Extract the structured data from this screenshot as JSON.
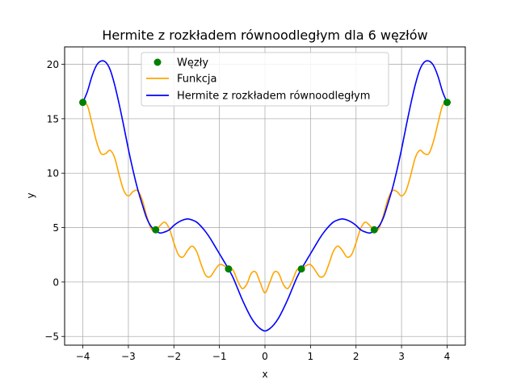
{
  "chart_data": {
    "type": "line",
    "title": "Hermite z rozkładem równoodległym dla 6 węzłów",
    "xlabel": "x",
    "ylabel": "y",
    "xlim": [
      -4.4,
      4.4
    ],
    "ylim": [
      -5.8,
      21.6
    ],
    "xticks": [
      -4,
      -3,
      -2,
      -1,
      0,
      1,
      2,
      3,
      4
    ],
    "yticks": [
      -5,
      0,
      5,
      10,
      15,
      20
    ],
    "grid": true,
    "legend_position": "top-center",
    "colors": {
      "nodes": "#008000",
      "function": "#ffa500",
      "hermite": "#0000ff"
    },
    "series": [
      {
        "name": "Węzły",
        "kind": "scatter",
        "x": [
          -4.0,
          -2.4,
          -0.8,
          0.8,
          2.4,
          4.0
        ],
        "y": [
          16.5,
          4.8,
          1.2,
          1.2,
          4.8,
          16.5
        ]
      },
      {
        "name": "Funkcja",
        "kind": "line",
        "x": [
          -4.0,
          -3.9,
          -3.8,
          -3.7,
          -3.6,
          -3.5,
          -3.4,
          -3.3,
          -3.2,
          -3.1,
          -3.0,
          -2.9,
          -2.8,
          -2.7,
          -2.6,
          -2.5,
          -2.4,
          -2.3,
          -2.2,
          -2.1,
          -2.0,
          -1.9,
          -1.8,
          -1.7,
          -1.6,
          -1.5,
          -1.4,
          -1.3,
          -1.2,
          -1.1,
          -1.0,
          -0.9,
          -0.8,
          -0.7,
          -0.6,
          -0.5,
          -0.4,
          -0.3,
          -0.2,
          -0.1,
          0.0,
          0.1,
          0.2,
          0.3,
          0.4,
          0.5,
          0.6,
          0.7,
          0.8,
          0.9,
          1.0,
          1.1,
          1.2,
          1.3,
          1.4,
          1.5,
          1.6,
          1.7,
          1.8,
          1.9,
          2.0,
          2.1,
          2.2,
          2.3,
          2.4,
          2.5,
          2.6,
          2.7,
          2.8,
          2.9,
          3.0,
          3.1,
          3.2,
          3.3,
          3.4,
          3.5,
          3.6,
          3.7,
          3.8,
          3.9,
          4.0
        ],
        "y": [
          16.5,
          16.2,
          14.6,
          12.9,
          11.8,
          11.8,
          12.1,
          11.4,
          9.8,
          8.4,
          7.9,
          8.3,
          8.4,
          7.6,
          6.1,
          4.9,
          4.8,
          5.2,
          5.5,
          4.9,
          3.6,
          2.5,
          2.3,
          2.9,
          3.3,
          2.8,
          1.6,
          0.6,
          0.5,
          1.1,
          1.6,
          1.5,
          1.2,
          1.1,
          0.1,
          -0.6,
          -0.2,
          0.8,
          0.9,
          -0.1,
          -1.0,
          -0.1,
          0.9,
          0.8,
          -0.2,
          -0.6,
          0.1,
          1.1,
          1.2,
          1.5,
          1.6,
          1.1,
          0.5,
          0.6,
          1.6,
          2.8,
          3.3,
          2.9,
          2.3,
          2.5,
          3.6,
          4.9,
          5.5,
          5.2,
          4.8,
          4.9,
          6.1,
          7.6,
          8.4,
          8.3,
          7.9,
          8.4,
          9.8,
          11.4,
          12.1,
          11.8,
          11.8,
          12.9,
          14.6,
          16.2,
          16.5
        ]
      },
      {
        "name": "Hermite z rozkładem równoodległym",
        "kind": "line",
        "x": [
          -4.0,
          -3.9,
          -3.8,
          -3.7,
          -3.6,
          -3.5,
          -3.4,
          -3.3,
          -3.2,
          -3.1,
          -3.0,
          -2.9,
          -2.8,
          -2.7,
          -2.6,
          -2.5,
          -2.4,
          -2.3,
          -2.2,
          -2.1,
          -2.0,
          -1.9,
          -1.8,
          -1.7,
          -1.6,
          -1.5,
          -1.4,
          -1.3,
          -1.2,
          -1.1,
          -1.0,
          -0.9,
          -0.8,
          -0.7,
          -0.6,
          -0.5,
          -0.4,
          -0.3,
          -0.2,
          -0.1,
          0.0,
          0.1,
          0.2,
          0.3,
          0.4,
          0.5,
          0.6,
          0.7,
          0.8,
          0.9,
          1.0,
          1.1,
          1.2,
          1.3,
          1.4,
          1.5,
          1.6,
          1.7,
          1.8,
          1.9,
          2.0,
          2.1,
          2.2,
          2.3,
          2.4,
          2.5,
          2.6,
          2.7,
          2.8,
          2.9,
          3.0,
          3.1,
          3.2,
          3.3,
          3.4,
          3.5,
          3.6,
          3.7,
          3.8,
          3.9,
          4.0
        ],
        "y": [
          16.5,
          17.5,
          18.9,
          19.9,
          20.3,
          20.2,
          19.5,
          18.1,
          16.3,
          14.3,
          12.2,
          10.3,
          8.6,
          7.2,
          5.9,
          5.1,
          4.7,
          4.5,
          4.6,
          4.8,
          5.2,
          5.5,
          5.7,
          5.8,
          5.7,
          5.5,
          5.1,
          4.6,
          4.0,
          3.3,
          2.6,
          1.9,
          1.2,
          0.4,
          -0.6,
          -1.6,
          -2.5,
          -3.3,
          -3.9,
          -4.3,
          -4.5,
          -4.3,
          -3.9,
          -3.3,
          -2.5,
          -1.6,
          -0.6,
          0.4,
          1.2,
          1.9,
          2.6,
          3.3,
          4.0,
          4.6,
          5.1,
          5.5,
          5.7,
          5.8,
          5.7,
          5.5,
          5.2,
          4.8,
          4.6,
          4.5,
          4.7,
          5.1,
          5.9,
          7.2,
          8.6,
          10.3,
          12.2,
          14.3,
          16.3,
          18.1,
          19.5,
          20.2,
          20.3,
          19.9,
          18.9,
          17.5,
          16.5
        ]
      }
    ]
  }
}
